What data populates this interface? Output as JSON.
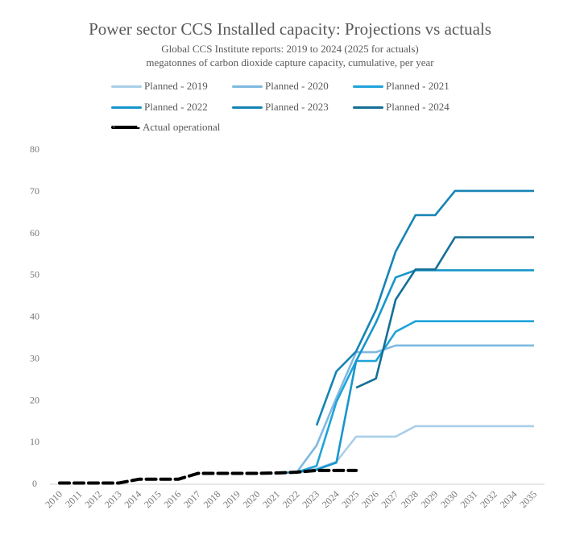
{
  "chart_data": {
    "type": "line",
    "title": "Power sector CCS Installed capacity: Projections vs actuals",
    "subtitle": [
      "Global CCS Institute reports: 2019 to 2024 (2025 for actuals)",
      "megatonnes of carbon dioxide capture capacity, cumulative, per year"
    ],
    "xlabel": "",
    "ylabel": "",
    "ylim": [
      0,
      80
    ],
    "yticks": [
      0,
      10,
      20,
      30,
      40,
      50,
      60,
      70,
      80
    ],
    "grid": false,
    "legend_position": "top",
    "categories": [
      "2010",
      "2011",
      "2012",
      "2013",
      "2014",
      "2015",
      "2016",
      "2017",
      "2018",
      "2019",
      "2020",
      "2021",
      "2022",
      "2023",
      "2024",
      "2025",
      "2026",
      "2027",
      "2028",
      "2029",
      "2030",
      "2031",
      "2032",
      "2034",
      "2035"
    ],
    "series": [
      {
        "name": "Planned - 2019",
        "color": "#a9cfe9",
        "dashed": false,
        "values": [
          null,
          null,
          null,
          null,
          null,
          null,
          null,
          null,
          null,
          null,
          null,
          2.5,
          2.7,
          3.5,
          5.2,
          11.2,
          11.2,
          11.2,
          13.7,
          13.7,
          13.7,
          13.7,
          13.7,
          13.7,
          13.7
        ]
      },
      {
        "name": "Planned - 2020",
        "color": "#7fb9e0",
        "dashed": false,
        "values": [
          null,
          null,
          null,
          null,
          null,
          null,
          null,
          null,
          null,
          null,
          null,
          2.5,
          2.7,
          9.1,
          20.5,
          31.4,
          31.4,
          33.0,
          33.0,
          33.0,
          33.0,
          33.0,
          33.0,
          33.0,
          33.0
        ]
      },
      {
        "name": "Planned - 2021",
        "color": "#1fa3d9",
        "dashed": false,
        "values": [
          null,
          null,
          null,
          null,
          null,
          null,
          null,
          null,
          null,
          null,
          null,
          2.5,
          2.7,
          4.2,
          19.5,
          29.3,
          29.3,
          36.3,
          38.8,
          38.8,
          38.8,
          38.8,
          38.8,
          38.8,
          38.8
        ]
      },
      {
        "name": "Planned - 2022",
        "color": "#1796cc",
        "dashed": false,
        "values": [
          null,
          null,
          null,
          null,
          null,
          null,
          null,
          null,
          null,
          null,
          null,
          null,
          2.7,
          3.3,
          5.0,
          29.3,
          38.5,
          49.3,
          51.0,
          51.0,
          51.0,
          51.0,
          51.0,
          51.0,
          51.0
        ]
      },
      {
        "name": "Planned - 2023",
        "color": "#1684b5",
        "dashed": false,
        "values": [
          null,
          null,
          null,
          null,
          null,
          null,
          null,
          null,
          null,
          null,
          null,
          null,
          null,
          13.9,
          26.8,
          31.6,
          41.5,
          55.5,
          64.2,
          64.2,
          70.0,
          70.0,
          70.0,
          70.0,
          70.0
        ]
      },
      {
        "name": "Planned - 2024",
        "color": "#146f96",
        "dashed": false,
        "values": [
          null,
          null,
          null,
          null,
          null,
          null,
          null,
          null,
          null,
          null,
          null,
          null,
          null,
          null,
          null,
          22.9,
          25.1,
          44.0,
          51.2,
          51.2,
          58.9,
          58.9,
          58.9,
          58.9,
          58.9
        ]
      },
      {
        "name": "Actual operational",
        "color": "#000000",
        "dashed": true,
        "values": [
          0.1,
          0.1,
          0.1,
          0.1,
          1.0,
          1.0,
          1.0,
          2.4,
          2.4,
          2.4,
          2.4,
          2.5,
          2.7,
          3.1,
          3.1,
          3.1,
          null,
          null,
          null,
          null,
          null,
          null,
          null,
          null,
          null
        ]
      }
    ]
  }
}
